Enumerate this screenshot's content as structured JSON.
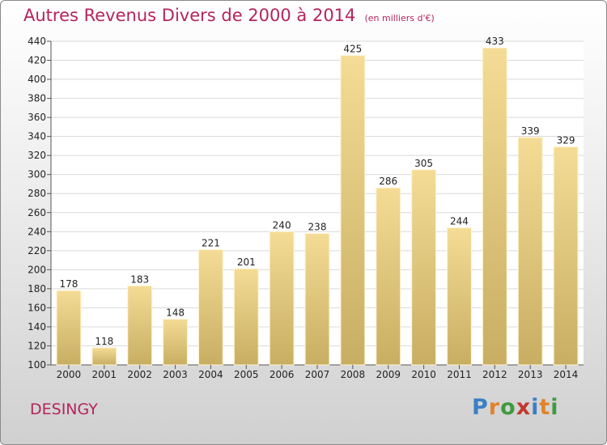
{
  "title": {
    "main": "Autres Revenus Divers de 2000 à 2014",
    "unit": "(en milliers d'€)"
  },
  "commune": "DESINGY",
  "logo": {
    "text": "Proxiti",
    "letter_colors": [
      "#3b7fc4",
      "#e2832b",
      "#3f9b3f",
      "#c0392b",
      "#3b7fc4",
      "#e2832b",
      "#3f9b3f"
    ]
  },
  "colors": {
    "title": "#b5245c",
    "bar_top": "#f4dc96",
    "bar_bottom": "#c8ae62",
    "grid": "#d9d9d9"
  },
  "chart_data": {
    "type": "bar",
    "categories": [
      "2000",
      "2001",
      "2002",
      "2003",
      "2004",
      "2005",
      "2006",
      "2007",
      "2008",
      "2009",
      "2010",
      "2011",
      "2012",
      "2013",
      "2014"
    ],
    "values": [
      178,
      118,
      183,
      148,
      221,
      201,
      240,
      238,
      425,
      286,
      305,
      244,
      433,
      339,
      329
    ],
    "ylim": [
      100,
      440
    ],
    "ytick_step": 20,
    "grid": "horizontal",
    "data_labels": true,
    "legend": "none"
  }
}
